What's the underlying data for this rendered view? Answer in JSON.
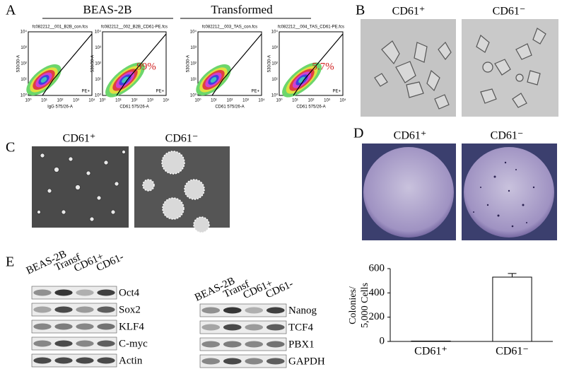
{
  "panel_a": {
    "label": "A",
    "groups": [
      "BEAS-2B",
      "Transformed"
    ],
    "ticks": [
      "10⁰",
      "10¹",
      "10²",
      "10³",
      "10⁴"
    ],
    "plots": [
      {
        "file": "fc082212__001_B2B_con.fcs",
        "y_label": "530/30-A",
        "x_label": "IgG 575/26-A",
        "gate": "PE+"
      },
      {
        "file": "fc082212__002_B2B_CD61-PE.fcs",
        "y_label": "530/30-A",
        "x_label": "CD61 575/26-A",
        "gate": "PE+",
        "percent": "99%"
      },
      {
        "file": "fc082212__003_TAS_con.fcs",
        "y_label": "530/30-A",
        "x_label": "CD61 575/26-A",
        "gate": "PE+"
      },
      {
        "file": "fc082212__004_TAS_CD61-PE.fcs",
        "y_label": "530/30-A",
        "x_label": "CD61 575/26-A",
        "gate": "PE+",
        "percent": "5.7%"
      }
    ]
  },
  "panel_b": {
    "label": "B",
    "columns": [
      "CD61⁺",
      "CD61⁻"
    ]
  },
  "panel_c": {
    "label": "C",
    "columns": [
      "CD61⁺",
      "CD61⁻"
    ]
  },
  "panel_d": {
    "label": "D",
    "columns": [
      "CD61⁺",
      "CD61⁻"
    ]
  },
  "panel_e": {
    "label": "E",
    "blot_1": {
      "lanes": [
        "BEAS-2B",
        "Transf",
        "CD61+",
        "CD61-"
      ],
      "proteins": [
        "Oct4",
        "Sox2",
        "KLF4",
        "C-myc",
        "Actin"
      ]
    },
    "blot_2": {
      "lanes": [
        "BEAS-2B",
        "Transf",
        "CD61+",
        "CD61-"
      ],
      "proteins": [
        "Nanog",
        "TCF4",
        "PBX1",
        "GAPDH"
      ]
    }
  },
  "chart_data": {
    "type": "bar",
    "y_label": [
      "Colonies/",
      "5,000 Cells"
    ],
    "categories": [
      "CD61⁺",
      "CD61⁻"
    ],
    "values": [
      3,
      530
    ],
    "errors": [
      0,
      30
    ],
    "color": "#ffffff",
    "ylim": [
      0,
      600
    ],
    "yticks": [
      0,
      200,
      400,
      600
    ]
  }
}
